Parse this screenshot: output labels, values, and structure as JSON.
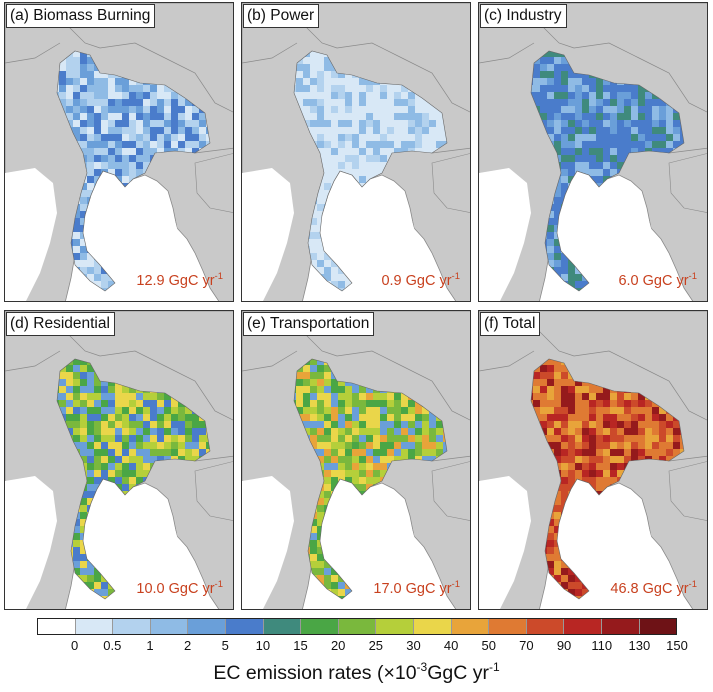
{
  "panels": [
    {
      "title": "(a) Biomass Burning",
      "total": "12.9 GgC yr",
      "total_exp": "-1",
      "fill": "biomass"
    },
    {
      "title": "(b) Power",
      "total": "0.9 GgC yr",
      "total_exp": "-1",
      "fill": "power"
    },
    {
      "title": "(c) Industry",
      "total": "6.0 GgC yr",
      "total_exp": "-1",
      "fill": "industry"
    },
    {
      "title": "(d) Residential",
      "total": "10.0 GgC yr",
      "total_exp": "-1",
      "fill": "residential"
    },
    {
      "title": "(e) Transportation",
      "total": "17.0 GgC yr",
      "total_exp": "-1",
      "fill": "transport"
    },
    {
      "title": "(f) Total",
      "total": "46.8 GgC yr",
      "total_exp": "-1",
      "fill": "total"
    }
  ],
  "colorbar": {
    "ticks": [
      "0",
      "0.5",
      "1",
      "2",
      "5",
      "10",
      "15",
      "20",
      "25",
      "30",
      "40",
      "50",
      "70",
      "90",
      "110",
      "130",
      "150"
    ],
    "colors": [
      "#ffffff",
      "#d8e8f6",
      "#b3d2ee",
      "#8fbbe5",
      "#6a9fd9",
      "#4a7ccb",
      "#3f8a7d",
      "#4aa645",
      "#7ab83d",
      "#b5cf3a",
      "#ead64a",
      "#e8a43a",
      "#df7a33",
      "#cc4a2a",
      "#b82623",
      "#951a1c",
      "#6e1216"
    ],
    "label": "EC emission rates (×10",
    "label_exp": "-3",
    "label_tail": "GgC yr",
    "label_exp2": "-1"
  },
  "map_colors": {
    "land": "#c9c9c9",
    "sea": "#ffffff",
    "border": "#8a8a8a"
  }
}
